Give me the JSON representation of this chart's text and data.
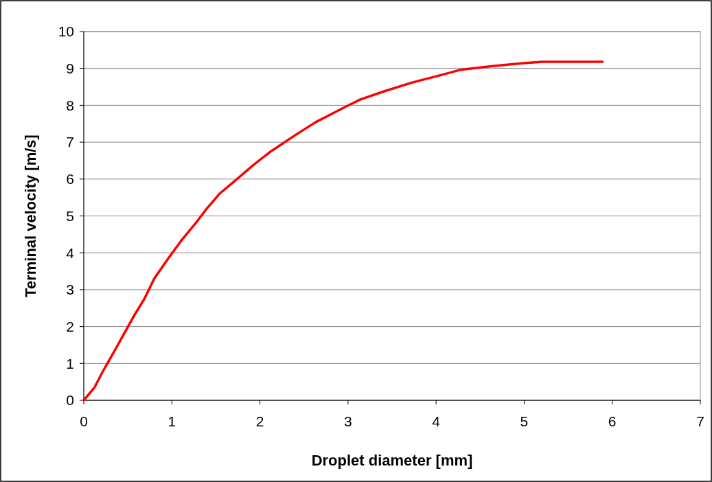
{
  "chart_data": {
    "type": "line",
    "xlabel": "Droplet diameter [mm]",
    "ylabel": "Terminal velocity [m/s]",
    "xlim": [
      0,
      7
    ],
    "xticks": [
      0,
      1,
      2,
      3,
      4,
      5,
      6,
      7
    ],
    "ylim": [
      0,
      10
    ],
    "yticks": [
      0,
      1,
      2,
      3,
      4,
      5,
      6,
      7,
      8,
      9,
      10
    ],
    "grid": "y",
    "marker": "none",
    "line_style": "solid",
    "series": [
      {
        "color": "#ff0000",
        "x": [
          0,
          0.12,
          0.22,
          0.34,
          0.44,
          0.57,
          0.69,
          0.8,
          0.96,
          1.11,
          1.27,
          1.39,
          1.54,
          1.7,
          1.93,
          2.13,
          2.4,
          2.63,
          2.98,
          3.14,
          3.41,
          3.73,
          4.04,
          4.27,
          4.66,
          4.97,
          5.21,
          5.89
        ],
        "values": [
          0,
          0.34,
          0.8,
          1.3,
          1.73,
          2.29,
          2.76,
          3.3,
          3.85,
          4.34,
          4.8,
          5.18,
          5.6,
          5.92,
          6.39,
          6.76,
          7.19,
          7.54,
          7.97,
          8.16,
          8.38,
          8.62,
          8.81,
          8.96,
          9.07,
          9.14,
          9.18,
          9.18
        ]
      }
    ]
  }
}
